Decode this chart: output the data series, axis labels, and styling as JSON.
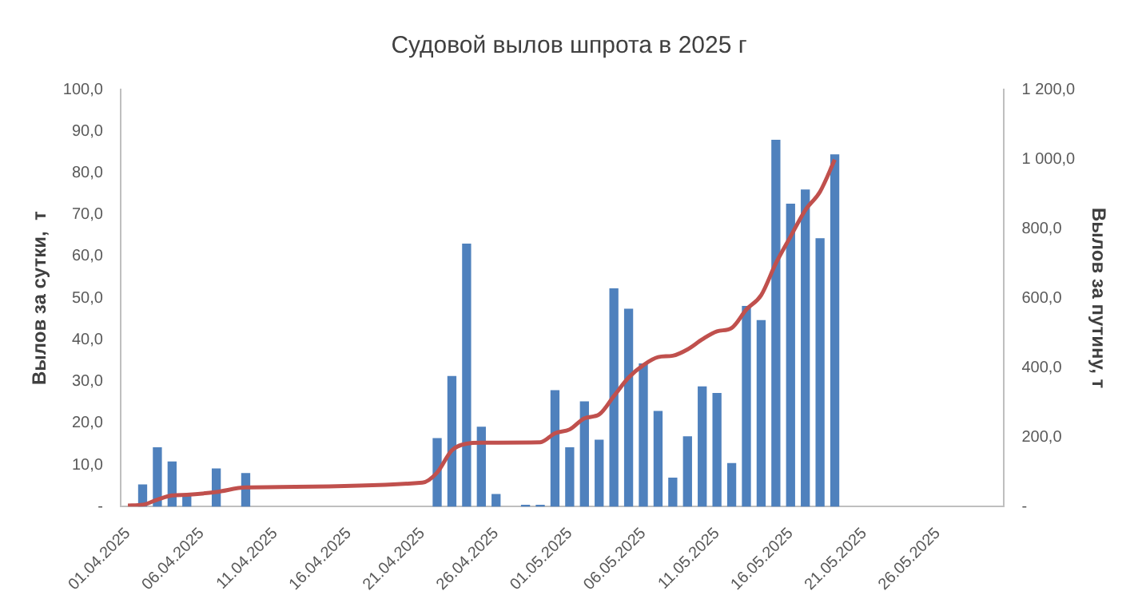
{
  "chart_data": {
    "type": "bar",
    "title": "Судовой вылов шпрота в 2025 г",
    "ylabel": "Вылов за сутки,  т",
    "y2label": "Вылов за путину, т",
    "xlim": [
      "2025-03-31T12:00",
      "2025-05-30T12:00"
    ],
    "xticks": [
      {
        "value": "2025-04-01",
        "label": "01.04.2025"
      },
      {
        "value": "2025-04-06",
        "label": "06.04.2025"
      },
      {
        "value": "2025-04-11",
        "label": "11.04.2025"
      },
      {
        "value": "2025-04-16",
        "label": "16.04.2025"
      },
      {
        "value": "2025-04-21",
        "label": "21.04.2025"
      },
      {
        "value": "2025-04-26",
        "label": "26.04.2025"
      },
      {
        "value": "2025-05-01",
        "label": "01.05.2025"
      },
      {
        "value": "2025-05-06",
        "label": "06.05.2025"
      },
      {
        "value": "2025-05-11",
        "label": "11.05.2025"
      },
      {
        "value": "2025-05-16",
        "label": "16.05.2025"
      },
      {
        "value": "2025-05-21",
        "label": "21.05.2025"
      },
      {
        "value": "2025-05-26",
        "label": "26.05.2025"
      }
    ],
    "ylim": [
      0,
      100
    ],
    "yticks": [
      {
        "value": 0,
        "label": "-"
      },
      {
        "value": 10,
        "label": "10,0"
      },
      {
        "value": 20,
        "label": "20,0"
      },
      {
        "value": 30,
        "label": "30,0"
      },
      {
        "value": 40,
        "label": "40,0"
      },
      {
        "value": 50,
        "label": "50,0"
      },
      {
        "value": 60,
        "label": "60,0"
      },
      {
        "value": 70,
        "label": "70,0"
      },
      {
        "value": 80,
        "label": "80,0"
      },
      {
        "value": 90,
        "label": "90,0"
      },
      {
        "value": 100,
        "label": "100,0"
      }
    ],
    "y2lim": [
      0,
      1200
    ],
    "y2ticks": [
      {
        "value": 0,
        "label": "-"
      },
      {
        "value": 200,
        "label": "200,0"
      },
      {
        "value": 400,
        "label": "400,0"
      },
      {
        "value": 600,
        "label": "600,0"
      },
      {
        "value": 800,
        "label": "800,0"
      },
      {
        "value": 1000,
        "label": "1 000,0"
      },
      {
        "value": 1200,
        "label": "1 200,0"
      }
    ],
    "grid": false,
    "legend": false,
    "series": [
      {
        "color": "#4f81bd",
        "x": [
          "2025-04-02",
          "2025-04-03",
          "2025-04-04",
          "2025-04-05",
          "2025-04-07",
          "2025-04-09",
          "2025-04-22",
          "2025-04-23",
          "2025-04-24",
          "2025-04-25",
          "2025-04-26",
          "2025-04-28",
          "2025-04-29",
          "2025-04-30",
          "2025-05-01",
          "2025-05-02",
          "2025-05-03",
          "2025-05-04",
          "2025-05-05",
          "2025-05-06",
          "2025-05-07",
          "2025-05-08",
          "2025-05-09",
          "2025-05-10",
          "2025-05-11",
          "2025-05-12",
          "2025-05-13",
          "2025-05-14",
          "2025-05-15",
          "2025-05-16",
          "2025-05-17",
          "2025-05-18",
          "2025-05-19"
        ],
        "values": [
          5.2,
          14.1,
          10.7,
          2.6,
          9,
          7.9,
          16.3,
          31.2,
          62.9,
          19,
          2.9,
          0.3,
          0.3,
          27.8,
          14.1,
          25.1,
          15.9,
          52.2,
          47.3,
          34.2,
          22.8,
          6.8,
          16.7,
          28.7,
          27.1,
          10.3,
          48,
          44.6,
          87.8,
          72.5,
          75.9,
          64.2,
          84.3
        ]
      },
      {
        "type": "line",
        "axis": "y2",
        "color": "#c0504d",
        "x": [
          "2025-04-01",
          "2025-04-02",
          "2025-04-03",
          "2025-04-04",
          "2025-04-05",
          "2025-04-07",
          "2025-04-09",
          "2025-04-21",
          "2025-04-22",
          "2025-04-23",
          "2025-04-24",
          "2025-04-25",
          "2025-04-29",
          "2025-04-30",
          "2025-05-01",
          "2025-05-02",
          "2025-05-03",
          "2025-05-04",
          "2025-05-05",
          "2025-05-06",
          "2025-05-07",
          "2025-05-08",
          "2025-05-09",
          "2025-05-10",
          "2025-05-11",
          "2025-05-12",
          "2025-05-13",
          "2025-05-14",
          "2025-05-15",
          "2025-05-16",
          "2025-05-17",
          "2025-05-18",
          "2025-05-19"
        ],
        "values": [
          3,
          5,
          20,
          32,
          34,
          42,
          55,
          69,
          98,
          162,
          181,
          184,
          185,
          211,
          222,
          254,
          265,
          318,
          371,
          407,
          430,
          434,
          452,
          481,
          504,
          514,
          567,
          608,
          700,
          777,
          853,
          906,
          998
        ]
      }
    ]
  }
}
